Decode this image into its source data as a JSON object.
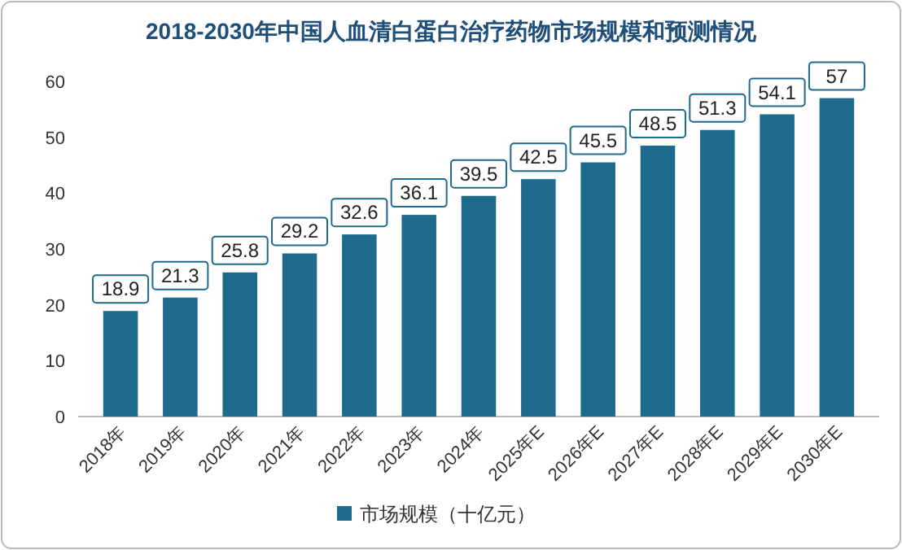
{
  "chart_data": {
    "type": "bar",
    "title": "2018-2030年中国人血清白蛋白治疗药物市场规模和预测情况",
    "categories": [
      "2018年",
      "2019年",
      "2020年",
      "2021年",
      "2022年",
      "2023年",
      "2024年",
      "2025年E",
      "2026年E",
      "2027年E",
      "2028年E",
      "2029年E",
      "2030年E"
    ],
    "series": [
      {
        "name": "市场规模（十亿元）",
        "color": "#1d6a8c",
        "values": [
          18.9,
          21.3,
          25.8,
          29.2,
          32.6,
          36.1,
          39.5,
          42.5,
          45.5,
          48.5,
          51.3,
          54.1,
          57
        ]
      }
    ],
    "ylim": [
      0,
      60
    ],
    "yticks": [
      0,
      10,
      20,
      30,
      40,
      50,
      60
    ],
    "data_labels": true,
    "legend": "bottom",
    "grid": false
  }
}
